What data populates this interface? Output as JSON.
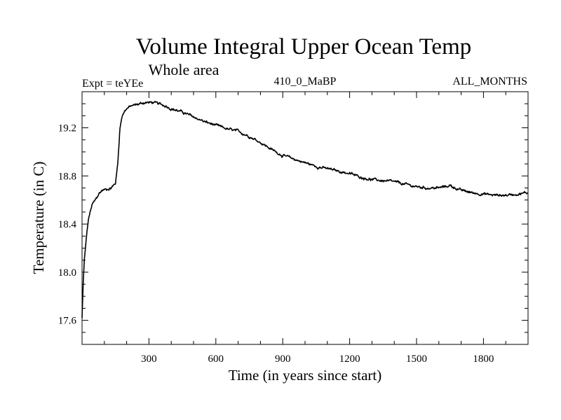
{
  "chart_data": {
    "type": "line",
    "title": "Volume Integral Upper Ocean Temp",
    "subtitle": "Whole area",
    "left_label": "Expt = teYEe",
    "center_label": "410_0_MaBP",
    "right_label": "ALL_MONTHS",
    "xlabel": "Time (in years since start)",
    "ylabel": "Temperature (in C)",
    "xlim": [
      0,
      2000
    ],
    "ylim": [
      17.4,
      19.5
    ],
    "x_ticks": [
      300,
      600,
      900,
      1200,
      1500,
      1800
    ],
    "x_tick_labels": [
      "300",
      "600",
      "900",
      "1200",
      "1500",
      "1800"
    ],
    "y_ticks": [
      17.6,
      18.0,
      18.4,
      18.8,
      19.2
    ],
    "y_tick_labels": [
      "17.6",
      "18.0",
      "18.4",
      "18.8",
      "19.2"
    ],
    "grid": false,
    "series": [
      {
        "name": "teYEe",
        "x": [
          0,
          5,
          10,
          20,
          30,
          45,
          60,
          75,
          90,
          110,
          130,
          150,
          160,
          165,
          170,
          180,
          190,
          200,
          220,
          240,
          260,
          280,
          300,
          320,
          340,
          360,
          380,
          400,
          450,
          500,
          550,
          600,
          650,
          700,
          750,
          800,
          850,
          900,
          950,
          1000,
          1050,
          1100,
          1150,
          1200,
          1250,
          1300,
          1350,
          1400,
          1450,
          1500,
          1550,
          1600,
          1650,
          1700,
          1750,
          1800,
          1850,
          1900,
          1950,
          2000
        ],
        "values": [
          17.62,
          17.9,
          18.1,
          18.3,
          18.45,
          18.56,
          18.6,
          18.65,
          18.68,
          18.69,
          18.7,
          18.74,
          18.9,
          19.05,
          19.2,
          19.3,
          19.34,
          19.36,
          19.38,
          19.39,
          19.4,
          19.41,
          19.41,
          19.41,
          19.4,
          19.39,
          19.38,
          19.36,
          19.33,
          19.29,
          19.25,
          19.22,
          19.19,
          19.17,
          19.13,
          19.08,
          19.02,
          18.97,
          18.94,
          18.91,
          18.88,
          18.86,
          18.84,
          18.82,
          18.79,
          18.77,
          18.76,
          18.75,
          18.73,
          18.71,
          18.7,
          18.7,
          18.72,
          18.68,
          18.66,
          18.65,
          18.64,
          18.64,
          18.65,
          18.66
        ]
      }
    ]
  }
}
